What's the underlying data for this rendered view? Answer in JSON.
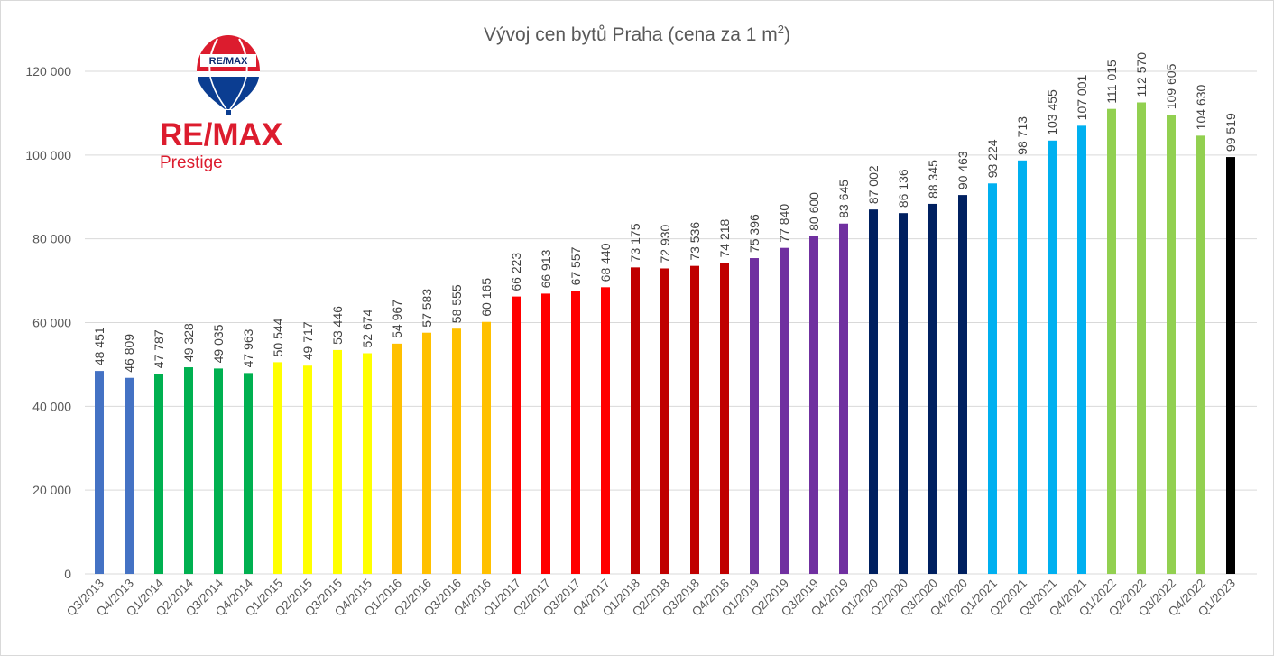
{
  "logo": {
    "brand": "RE/MAX",
    "sub": "Prestige",
    "balloon_text": "RE/MAX"
  },
  "colors": {
    "blue": "#4472c4",
    "green": "#00b050",
    "yellow": "#ffff00",
    "orange": "#ffc000",
    "red": "#ff0000",
    "darkred": "#c00000",
    "purple": "#7030a0",
    "navy": "#002060",
    "lightblue": "#00b0f0",
    "lightgreen": "#92d050",
    "black": "#000000",
    "grid": "#d9d9d9",
    "logo_red": "#dc1c2e",
    "logo_blue": "#0b3d91"
  },
  "chart_data": {
    "type": "bar",
    "title": "Vývoj cen bytů Praha (cena za 1 m",
    "title_superscript": "2",
    "title_suffix": ")",
    "xlabel": "",
    "ylabel": "",
    "ylim": [
      0,
      120000
    ],
    "y_ticks": [
      {
        "value": 0,
        "label": "0"
      },
      {
        "value": 20000,
        "label": "20 000"
      },
      {
        "value": 40000,
        "label": "40 000"
      },
      {
        "value": 60000,
        "label": "60 000"
      },
      {
        "value": 80000,
        "label": "80 000"
      },
      {
        "value": 100000,
        "label": "100 000"
      },
      {
        "value": 120000,
        "label": "120 000"
      }
    ],
    "grid": true,
    "legend": "none",
    "categories": [
      "Q3/2013",
      "Q4/2013",
      "Q1/2014",
      "Q2/2014",
      "Q3/2014",
      "Q4/2014",
      "Q1/2015",
      "Q2/2015",
      "Q3/2015",
      "Q4/2015",
      "Q1/2016",
      "Q2/2016",
      "Q3/2016",
      "Q4/2016",
      "Q1/2017",
      "Q2/2017",
      "Q3/2017",
      "Q4/2017",
      "Q1/2018",
      "Q2/2018",
      "Q3/2018",
      "Q4/2018",
      "Q1/2019",
      "Q2/2019",
      "Q3/2019",
      "Q4/2019",
      "Q1/2020",
      "Q2/2020",
      "Q3/2020",
      "Q4/2020",
      "Q1/2021",
      "Q2/2021",
      "Q3/2021",
      "Q4/2021",
      "Q1/2022",
      "Q2/2022",
      "Q3/2022",
      "Q4/2022",
      "Q1/2023"
    ],
    "values": [
      48451,
      46809,
      47787,
      49328,
      49035,
      47963,
      50544,
      49717,
      53446,
      52674,
      54967,
      57583,
      58555,
      60165,
      66223,
      66913,
      67557,
      68440,
      73175,
      72930,
      73536,
      74218,
      75396,
      77840,
      80600,
      83645,
      87002,
      86136,
      88345,
      90463,
      93224,
      98713,
      103455,
      107001,
      111015,
      112570,
      109605,
      104630,
      99519
    ],
    "value_labels": [
      "48 451",
      "46 809",
      "47 787",
      "49 328",
      "49 035",
      "47 963",
      "50 544",
      "49 717",
      "53 446",
      "52 674",
      "54 967",
      "57 583",
      "58 555",
      "60 165",
      "66 223",
      "66 913",
      "67 557",
      "68 440",
      "73 175",
      "72 930",
      "73 536",
      "74 218",
      "75 396",
      "77 840",
      "80 600",
      "83 645",
      "87 002",
      "86 136",
      "88 345",
      "90 463",
      "93 224",
      "98 713",
      "103 455",
      "107 001",
      "111 015",
      "112 570",
      "109 605",
      "104 630",
      "99 519"
    ],
    "bar_color_keys": [
      "blue",
      "blue",
      "green",
      "green",
      "green",
      "green",
      "yellow",
      "yellow",
      "yellow",
      "yellow",
      "orange",
      "orange",
      "orange",
      "orange",
      "red",
      "red",
      "red",
      "red",
      "darkred",
      "darkred",
      "darkred",
      "darkred",
      "purple",
      "purple",
      "purple",
      "purple",
      "navy",
      "navy",
      "navy",
      "navy",
      "lightblue",
      "lightblue",
      "lightblue",
      "lightblue",
      "lightgreen",
      "lightgreen",
      "lightgreen",
      "lightgreen",
      "black"
    ]
  }
}
